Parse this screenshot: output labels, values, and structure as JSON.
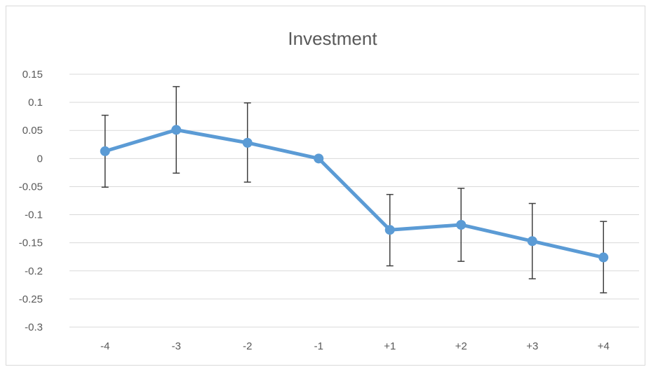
{
  "chart_data": {
    "type": "line",
    "title": "Investment",
    "xlabel": "",
    "ylabel": "",
    "categories": [
      "-4",
      "-3",
      "-2",
      "-1",
      "+1",
      "+2",
      "+3",
      "+4"
    ],
    "series": [
      {
        "values": [
          0.013,
          0.051,
          0.028,
          0.0,
          -0.127,
          -0.118,
          -0.147,
          -0.176
        ],
        "error_low": [
          -0.051,
          -0.026,
          -0.042,
          0.0,
          -0.191,
          -0.183,
          -0.214,
          -0.239
        ],
        "error_high": [
          0.077,
          0.128,
          0.099,
          0.0,
          -0.064,
          -0.053,
          -0.08,
          -0.112
        ],
        "color": "#5b9bd5"
      }
    ],
    "yticks": [
      "0.15",
      "0.1",
      "0.05",
      "0",
      "-0.05",
      "-0.1",
      "-0.15",
      "-0.2",
      "-0.25",
      "-0.3"
    ],
    "ylim": [
      -0.3,
      0.15
    ],
    "grid": true,
    "legend": "none",
    "colors": {
      "series": "#5b9bd5",
      "error_bar": "#404040",
      "grid": "#d9d9d9",
      "text": "#595959"
    }
  }
}
